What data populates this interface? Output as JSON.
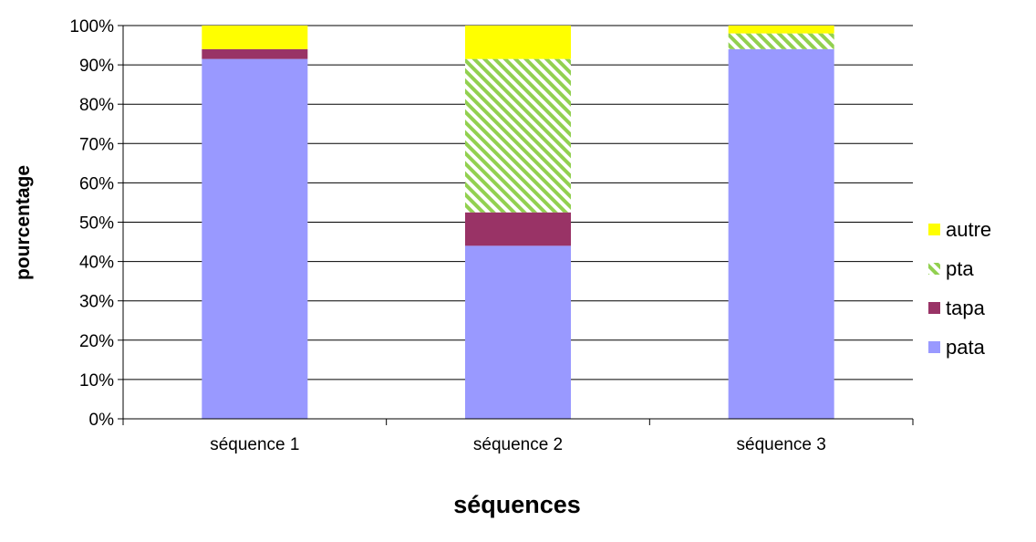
{
  "chart_data": {
    "type": "bar",
    "stacked": true,
    "percent_stacked": true,
    "title": "",
    "xlabel": "séquences",
    "ylabel": "pourcentage",
    "categories": [
      "séquence 1",
      "séquence 2",
      "séquence 3"
    ],
    "ylim": [
      0,
      100
    ],
    "yticks": [
      "0%",
      "10%",
      "20%",
      "30%",
      "40%",
      "50%",
      "60%",
      "70%",
      "80%",
      "90%",
      "100%"
    ],
    "grid": true,
    "legend_position": "right",
    "series": [
      {
        "name": "pata",
        "color": "#9999ff",
        "pattern": "solid",
        "values": [
          91.5,
          44,
          94
        ]
      },
      {
        "name": "tapa",
        "color": "#993366",
        "pattern": "solid",
        "values": [
          2.5,
          8.5,
          0
        ]
      },
      {
        "name": "pta",
        "color": "#92d050",
        "pattern": "diagonal-hatch",
        "values": [
          0,
          39,
          4
        ]
      },
      {
        "name": "autre",
        "color": "#ffff00",
        "pattern": "solid",
        "values": [
          6,
          8.5,
          2
        ]
      }
    ]
  }
}
